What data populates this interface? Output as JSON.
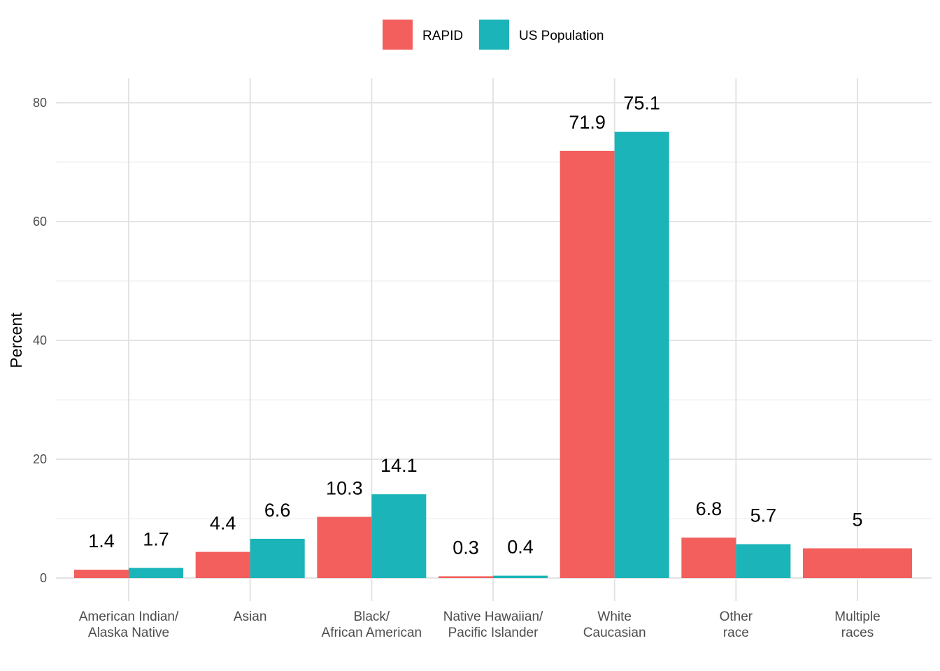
{
  "chart_data": {
    "type": "bar",
    "title": "",
    "xlabel": "",
    "ylabel": "Percent",
    "ylim": [
      0,
      80
    ],
    "yticks": [
      0,
      20,
      40,
      60,
      80
    ],
    "grid": true,
    "legend_position": "top",
    "categories": [
      [
        "American Indian/",
        "Alaska Native"
      ],
      [
        "Asian"
      ],
      [
        "Black/",
        "African American"
      ],
      [
        "Native Hawaiian/",
        "Pacific Islander"
      ],
      [
        "White",
        "Caucasian"
      ],
      [
        "Other",
        "race"
      ],
      [
        "Multiple",
        "races"
      ]
    ],
    "series": [
      {
        "name": "RAPID",
        "color": "#F25F5C",
        "values": [
          1.4,
          4.4,
          10.3,
          0.3,
          71.9,
          6.8,
          5
        ],
        "labels": [
          "1.4",
          "4.4",
          "10.3",
          "0.3",
          "71.9",
          "6.8",
          "5"
        ]
      },
      {
        "name": "US Population",
        "color": "#1BB4B9",
        "values": [
          1.7,
          6.6,
          14.1,
          0.4,
          75.1,
          5.7,
          null
        ],
        "labels": [
          "1.7",
          "6.6",
          "14.1",
          "0.4",
          "75.1",
          "5.7",
          null
        ]
      }
    ]
  }
}
